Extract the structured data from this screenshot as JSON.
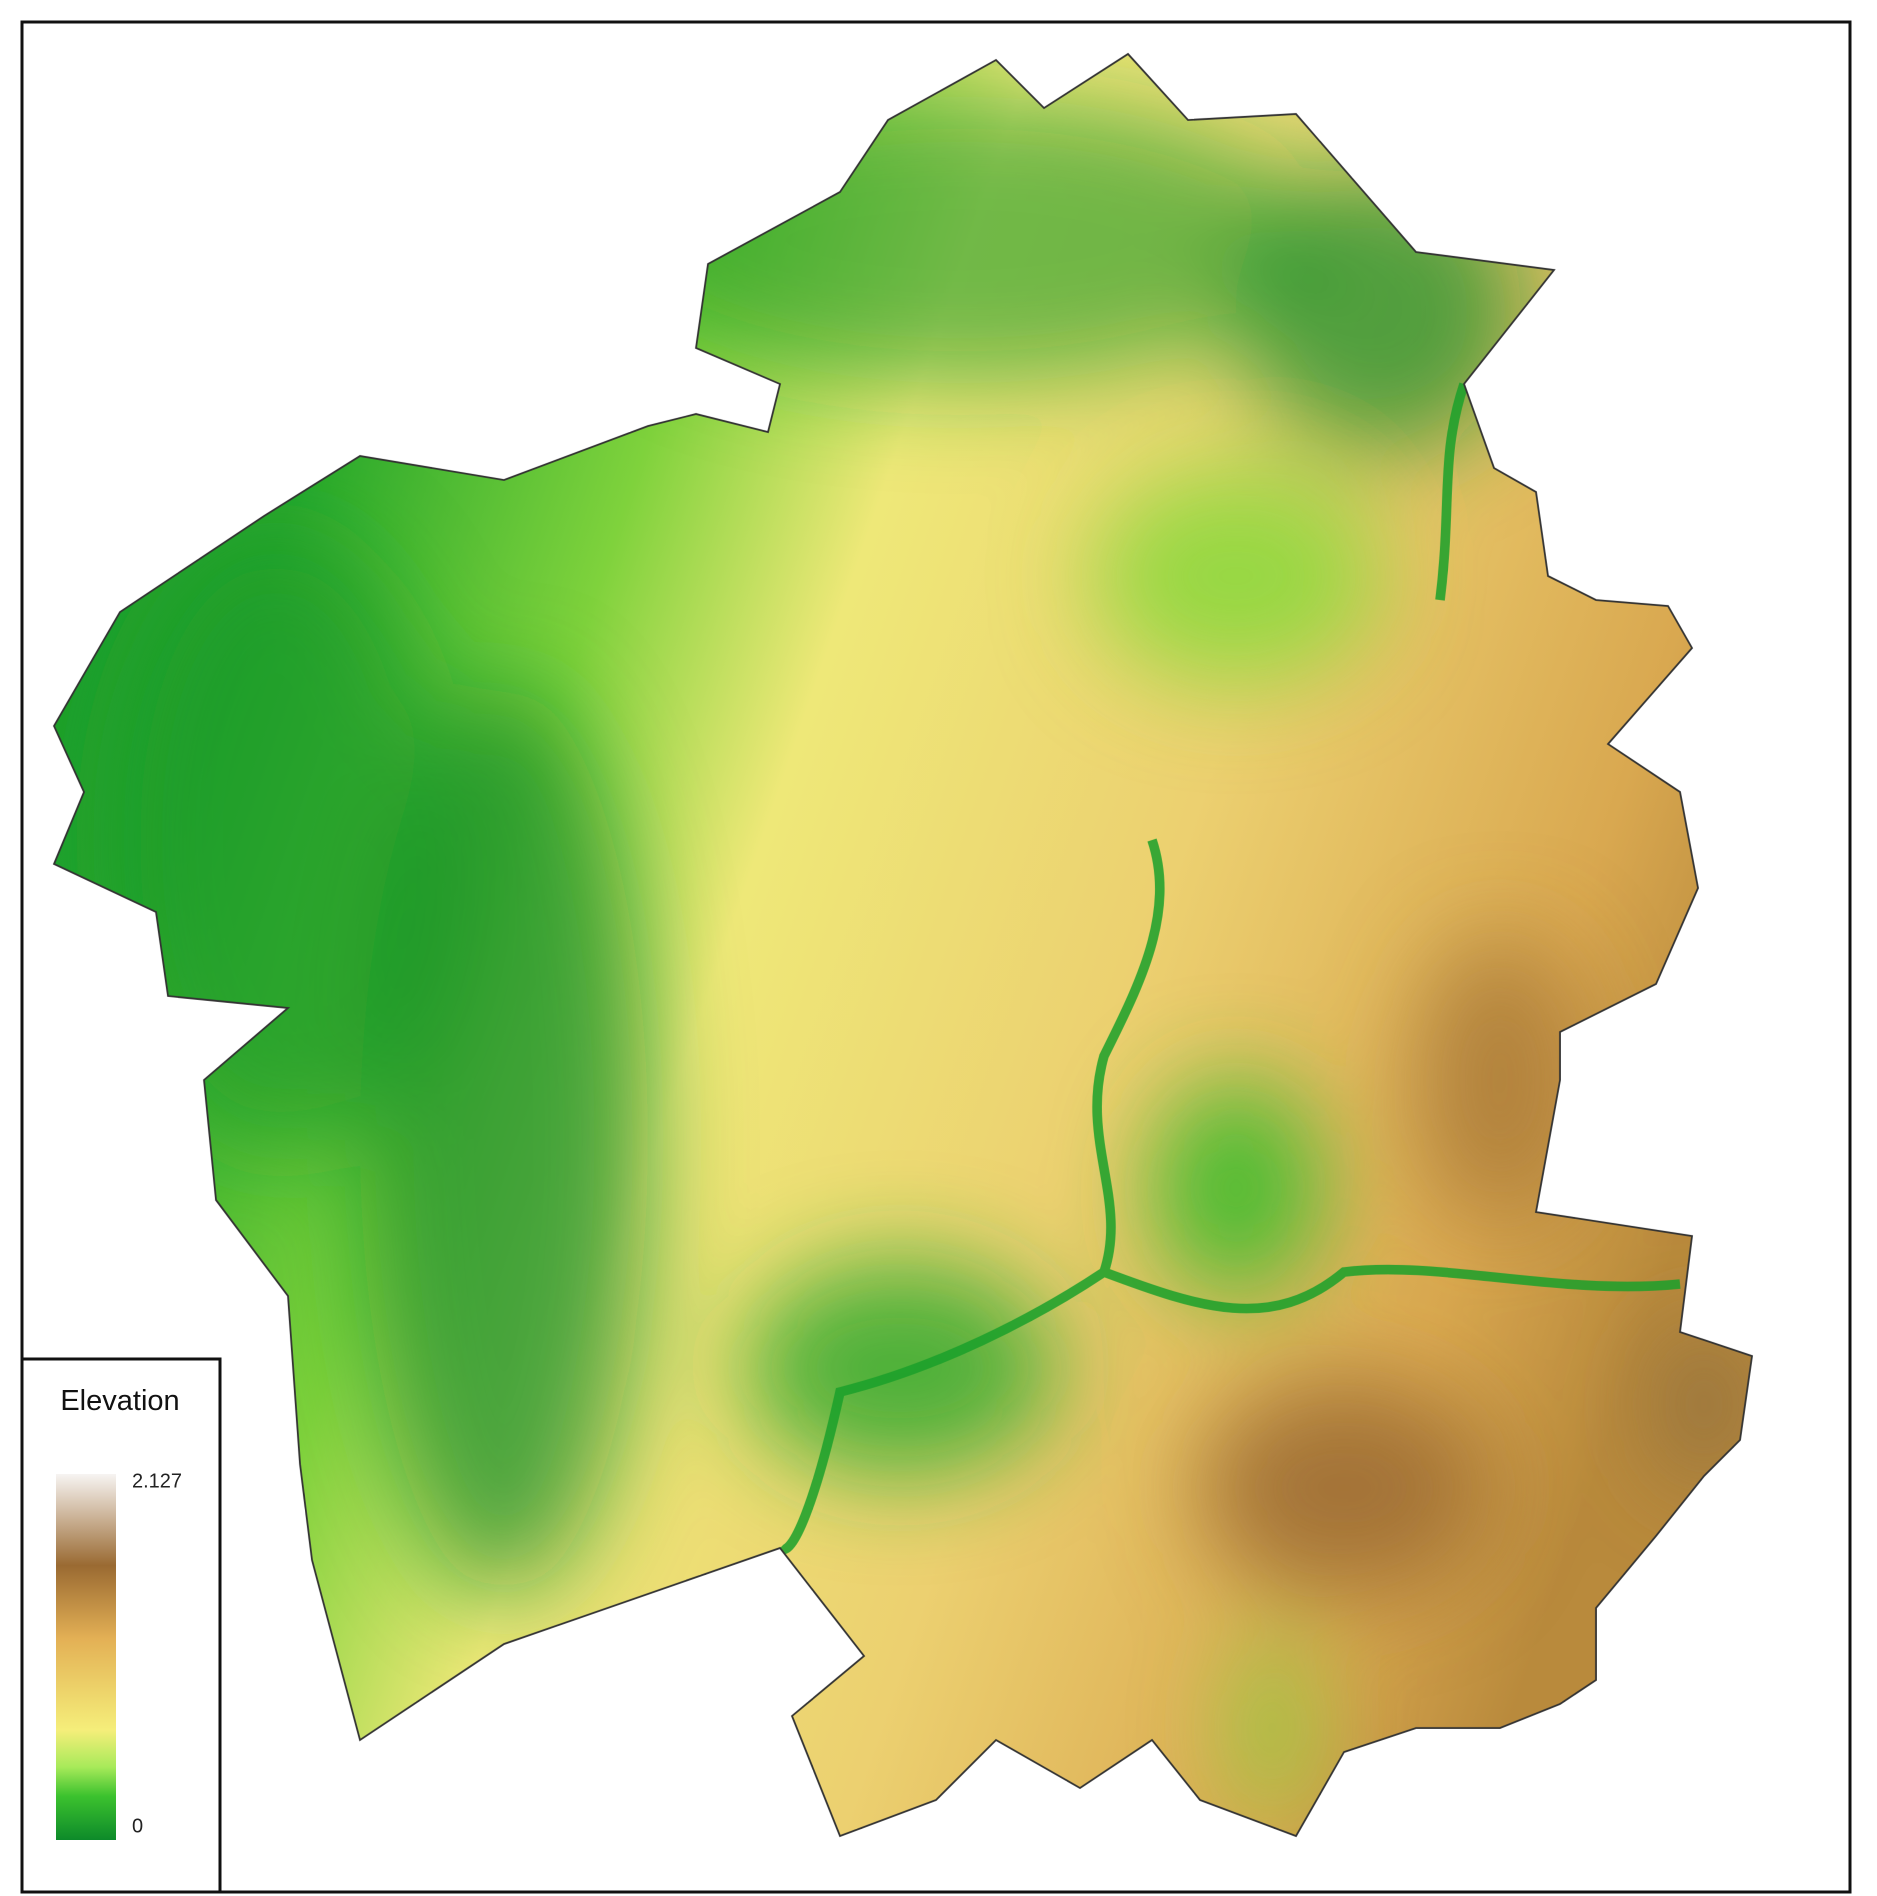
{
  "legend": {
    "title": "Elevation",
    "max_label": "2.127",
    "min_label": "0"
  }
}
